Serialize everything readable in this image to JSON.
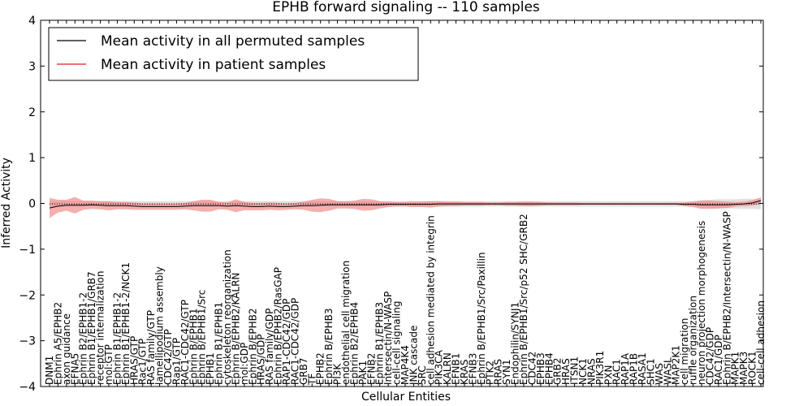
{
  "chart_data": {
    "type": "line",
    "title": "EPHB forward signaling -- 110 samples",
    "xlabel": "Cellular Entities",
    "ylabel": "Inferred Activity",
    "ylim": [
      -4,
      4
    ],
    "yticks": [
      "4",
      "3",
      "2",
      "1",
      "0",
      "−1",
      "−2",
      "−3",
      "−4"
    ],
    "ytick_values": [
      4,
      3,
      2,
      1,
      0,
      -1,
      -2,
      -3,
      -4
    ],
    "legend_position": "top-left",
    "legend": [
      {
        "label": "Mean activity in all permuted samples",
        "color": "#000000"
      },
      {
        "label": "Mean activity in patient samples",
        "color": "#e31a1c"
      }
    ],
    "categories": [
      "DNM1",
      "Ephrin A5/EPHB2",
      "axon guidance",
      "EFNA5",
      "Ephrin B2/EPHB1-2",
      "Ephrin B1/EPHB1/GRB7",
      "receptor internalization",
      "mol:GTP",
      "Ephrin B1/EPHB1-2",
      "Ephrin B1/EPHB1-2/NCK1",
      "HRAS/GTP",
      "Rac1/GTP",
      "RAS family/GTP",
      "lamellipodium assembly",
      "CDC42/GTP",
      "Rap1/GTP",
      "RAC1-CDC42/GTP",
      "Ephrin B/EPHB1",
      "Ephrin B/EPHB1/Src",
      "EPHB1",
      "Ephrin B1/EPHB1",
      "cytoskeleton reorganization",
      "Ephrin B/EPHB2/KALRN",
      "mol:GDP",
      "Ephrin B/EPHB2",
      "HRAS/GDP",
      "RAS family/GDP",
      "Ephrin B/EPHB2/RasGAP",
      "RAP1-CDC42/GDP",
      "RAC1-CDC42/GDP",
      "GRB7",
      "TF",
      "EPHB2",
      "Ephrin B/EPHB3",
      "PI3K",
      "endothelial cell migration",
      "Ephrin B2/EPHB4",
      "PAK1",
      "EFNB2",
      "Ephrin B1/EPHB3",
      "Intersectin/N-WASP",
      "cell-cell signaling",
      "MAP4K4",
      "JNK cascade",
      "SRC",
      "cell adhesion mediated by integrin",
      "PIK3CA",
      "KALRN",
      "EFNB1",
      "KRAS",
      "EFNB3",
      "Ephrin B/EPHB1/Src/Paxillin",
      "PTK2",
      "RRAS",
      "SYN1",
      "Endophilin/SYNJ1",
      "Ephrin B/EPHB1/Src/p52 SHC/GRB2",
      "CDC42",
      "EPHB3",
      "EPHB4",
      "GRB2",
      "HRAS",
      "ITSN1",
      "NCK1",
      "NRAS",
      "PIK3R1",
      "PXN",
      "RAC1",
      "RAP1A",
      "RAP1B",
      "RASA1",
      "SHC1",
      "WAS",
      "WASL",
      "MAP2K1",
      "cell migration",
      "ruffle organization",
      "neuron projection morphogenesis",
      "CDC42/GDP",
      "RAC1/GDP",
      "Ephrin B/EPHB2/Intersectin/N-WASP",
      "MAPK1",
      "MAPK3",
      "ROCK1",
      "cell-cell adhesion"
    ],
    "series": [
      {
        "name": "Mean activity in all permuted samples",
        "color": "#000000",
        "values": [
          -0.01,
          -0.01,
          -0.01,
          -0.01,
          -0.01,
          -0.01,
          -0.01,
          -0.01,
          -0.01,
          -0.01,
          -0.01,
          -0.01,
          -0.01,
          -0.01,
          -0.01,
          -0.01,
          -0.01,
          -0.01,
          -0.01,
          -0.01,
          -0.01,
          -0.01,
          -0.01,
          -0.01,
          -0.01,
          -0.01,
          -0.01,
          -0.01,
          -0.01,
          -0.01,
          -0.01,
          -0.01,
          -0.01,
          -0.01,
          -0.01,
          -0.01,
          -0.01,
          -0.01,
          -0.01,
          -0.01,
          -0.01,
          -0.01,
          -0.01,
          -0.01,
          -0.01,
          -0.01,
          -0.01,
          -0.01,
          -0.01,
          -0.01,
          -0.01,
          -0.01,
          -0.01,
          -0.01,
          -0.01,
          -0.01,
          -0.01,
          -0.01,
          -0.01,
          -0.01,
          -0.01,
          -0.01,
          -0.01,
          -0.01,
          -0.01,
          -0.01,
          -0.01,
          -0.01,
          -0.01,
          -0.01,
          -0.01,
          -0.01,
          -0.01,
          -0.01,
          -0.01,
          -0.01,
          -0.01,
          -0.01,
          -0.01,
          -0.01,
          -0.01,
          -0.01,
          -0.01,
          -0.01,
          -0.01
        ],
        "spread": [
          0.06,
          0.06,
          0.06,
          0.06,
          0.06,
          0.06,
          0.06,
          0.06,
          0.06,
          0.06,
          0.06,
          0.06,
          0.06,
          0.06,
          0.06,
          0.06,
          0.06,
          0.06,
          0.06,
          0.06,
          0.06,
          0.06,
          0.06,
          0.06,
          0.06,
          0.06,
          0.06,
          0.06,
          0.06,
          0.06,
          0.06,
          0.06,
          0.06,
          0.06,
          0.06,
          0.06,
          0.06,
          0.06,
          0.06,
          0.06,
          0.06,
          0.06,
          0.06,
          0.06,
          0.06,
          0.06,
          0.06,
          0.06,
          0.06,
          0.06,
          0.06,
          0.06,
          0.06,
          0.06,
          0.06,
          0.06,
          0.06,
          0.06,
          0.06,
          0.06,
          0.06,
          0.06,
          0.06,
          0.06,
          0.06,
          0.06,
          0.06,
          0.06,
          0.06,
          0.06,
          0.06,
          0.06,
          0.06,
          0.06,
          0.06,
          0.06,
          0.06,
          0.08,
          0.09,
          0.1,
          0.1,
          0.1,
          0.11,
          0.11,
          0.12
        ]
      },
      {
        "name": "Mean activity in patient samples",
        "color": "#e31a1c",
        "values": [
          -0.1,
          -0.06,
          -0.04,
          -0.04,
          -0.04,
          -0.03,
          -0.04,
          -0.05,
          -0.05,
          -0.05,
          -0.06,
          -0.07,
          -0.07,
          -0.07,
          -0.07,
          -0.07,
          -0.06,
          -0.05,
          -0.05,
          -0.05,
          -0.05,
          -0.06,
          -0.05,
          -0.06,
          -0.07,
          -0.07,
          -0.06,
          -0.07,
          -0.07,
          -0.06,
          -0.05,
          -0.05,
          -0.04,
          -0.03,
          -0.03,
          -0.03,
          -0.03,
          -0.03,
          -0.03,
          -0.03,
          -0.02,
          -0.02,
          -0.02,
          -0.02,
          -0.02,
          -0.02,
          -0.01,
          -0.01,
          -0.01,
          -0.01,
          -0.01,
          -0.01,
          -0.01,
          -0.01,
          -0.01,
          -0.01,
          -0.01,
          -0.01,
          -0.01,
          -0.01,
          -0.01,
          -0.01,
          -0.01,
          -0.01,
          -0.01,
          -0.01,
          -0.01,
          -0.01,
          -0.01,
          -0.01,
          -0.01,
          -0.01,
          -0.01,
          -0.01,
          -0.01,
          -0.02,
          -0.02,
          -0.03,
          -0.03,
          -0.03,
          -0.03,
          -0.02,
          -0.01,
          0.01,
          0.06
        ],
        "spread": [
          0.22,
          0.14,
          0.12,
          0.18,
          0.1,
          0.09,
          0.09,
          0.1,
          0.08,
          0.08,
          0.08,
          0.07,
          0.07,
          0.07,
          0.07,
          0.07,
          0.07,
          0.1,
          0.13,
          0.13,
          0.08,
          0.08,
          0.14,
          0.09,
          0.08,
          0.08,
          0.08,
          0.08,
          0.07,
          0.07,
          0.09,
          0.13,
          0.15,
          0.13,
          0.08,
          0.08,
          0.09,
          0.13,
          0.12,
          0.08,
          0.06,
          0.05,
          0.05,
          0.06,
          0.06,
          0.07,
          0.06,
          0.05,
          0.05,
          0.04,
          0.04,
          0.04,
          0.03,
          0.03,
          0.04,
          0.04,
          0.05,
          0.05,
          0.04,
          0.03,
          0.03,
          0.03,
          0.03,
          0.02,
          0.02,
          0.02,
          0.02,
          0.02,
          0.02,
          0.02,
          0.02,
          0.02,
          0.02,
          0.02,
          0.02,
          0.04,
          0.06,
          0.09,
          0.09,
          0.08,
          0.07,
          0.05,
          0.05,
          0.06,
          0.07
        ]
      }
    ]
  }
}
